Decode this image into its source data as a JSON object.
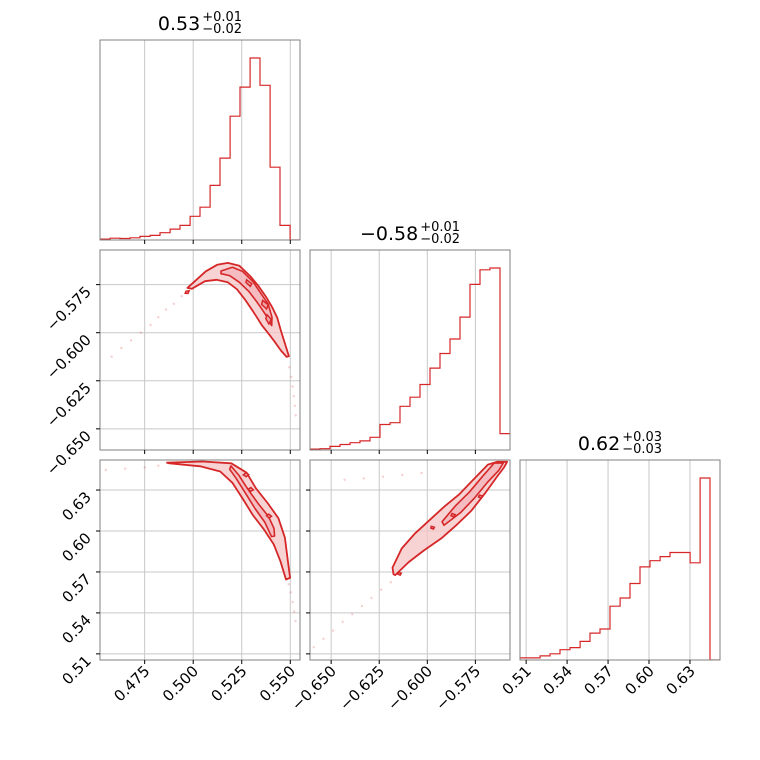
{
  "colors": {
    "hist": "#d62728",
    "contour": "#d62728",
    "fill": "#f4c4c6",
    "grid": "#c8c8c8",
    "frame": "#808080"
  },
  "chart_data": {
    "type": "corner",
    "grid": true,
    "parameters": [
      {
        "median": "0.53",
        "upper": "+0.01",
        "lower": "−0.02",
        "range": [
          0.452,
          0.555
        ],
        "ticks": [
          0.475,
          0.5,
          0.525,
          0.55
        ],
        "tick_labels": [
          "0.475",
          "0.500",
          "0.525",
          "0.550"
        ],
        "hist_edges": [
          0.452,
          0.4572,
          0.4623,
          0.4675,
          0.4726,
          0.4778,
          0.4829,
          0.4881,
          0.4932,
          0.4984,
          0.5035,
          0.5087,
          0.5138,
          0.519,
          0.5241,
          0.5293,
          0.5344,
          0.5396,
          0.5447,
          0.5499,
          0.555
        ],
        "hist_counts": [
          0.5,
          1,
          0.8,
          1.2,
          2,
          2.5,
          4,
          6,
          8,
          13,
          18,
          30,
          45,
          68,
          84,
          100,
          85,
          40,
          8,
          0
        ]
      },
      {
        "median": "−0.58",
        "upper": "+0.01",
        "lower": "−0.02",
        "range": [
          -0.661,
          -0.557
        ],
        "ticks": [
          -0.65,
          -0.625,
          -0.6,
          -0.575
        ],
        "tick_labels": [
          "−0.650",
          "−0.625",
          "−0.600",
          "−0.575"
        ],
        "hist_edges": [
          -0.661,
          -0.6558,
          -0.6506,
          -0.6454,
          -0.6402,
          -0.635,
          -0.6298,
          -0.6246,
          -0.6194,
          -0.6142,
          -0.609,
          -0.6038,
          -0.5986,
          -0.5934,
          -0.5882,
          -0.583,
          -0.5778,
          -0.5726,
          -0.5674,
          -0.5622,
          -0.557
        ],
        "hist_counts": [
          0.5,
          0.7,
          2,
          3,
          4,
          5,
          7,
          14,
          15,
          24,
          29,
          36,
          45,
          53,
          61,
          73,
          91,
          99,
          100,
          9
        ]
      },
      {
        "median": "0.62",
        "upper": "+0.03",
        "lower": "−0.03",
        "range": [
          0.5055,
          0.652
        ],
        "ticks": [
          0.51,
          0.54,
          0.57,
          0.6,
          0.63
        ],
        "tick_labels": [
          "0.51",
          "0.54",
          "0.57",
          "0.60",
          "0.63"
        ],
        "hist_edges": [
          0.5055,
          0.5128,
          0.5202,
          0.5275,
          0.5348,
          0.5421,
          0.5495,
          0.5568,
          0.5641,
          0.5714,
          0.5788,
          0.5861,
          0.5934,
          0.6007,
          0.6081,
          0.6154,
          0.6227,
          0.6301,
          0.6374,
          0.6447,
          0.652
        ],
        "hist_counts": [
          1,
          1,
          2,
          3,
          5,
          6,
          9,
          13,
          15,
          26,
          30,
          37,
          45,
          48,
          50,
          52,
          52,
          47,
          88,
          0
        ]
      }
    ],
    "pairs": [
      {
        "x_param": 0,
        "y_param": 1,
        "outer": [
          [
            0.497,
            -0.5767
          ],
          [
            0.5065,
            -0.5681
          ],
          [
            0.5123,
            -0.5647
          ],
          [
            0.5178,
            -0.5637
          ],
          [
            0.5238,
            -0.5652
          ],
          [
            0.5293,
            -0.5705
          ],
          [
            0.5335,
            -0.5756
          ],
          [
            0.5376,
            -0.5815
          ],
          [
            0.5406,
            -0.5866
          ],
          [
            0.5432,
            -0.592
          ],
          [
            0.5452,
            -0.5991
          ],
          [
            0.5476,
            -0.6067
          ],
          [
            0.5493,
            -0.6122
          ],
          [
            0.5481,
            -0.6126
          ],
          [
            0.5452,
            -0.6093
          ],
          [
            0.5416,
            -0.6042
          ],
          [
            0.5384,
            -0.6
          ],
          [
            0.5355,
            -0.5963
          ],
          [
            0.5326,
            -0.5917
          ],
          [
            0.5296,
            -0.5871
          ],
          [
            0.5266,
            -0.5827
          ],
          [
            0.5225,
            -0.5774
          ],
          [
            0.5178,
            -0.5738
          ],
          [
            0.512,
            -0.5725
          ],
          [
            0.5061,
            -0.5732
          ],
          [
            0.4993,
            -0.5772
          ]
        ],
        "inner": [
          [
            0.5143,
            -0.5679
          ],
          [
            0.5202,
            -0.566
          ],
          [
            0.5253,
            -0.568
          ],
          [
            0.5308,
            -0.5735
          ],
          [
            0.5346,
            -0.5792
          ],
          [
            0.5386,
            -0.5852
          ],
          [
            0.5406,
            -0.592
          ],
          [
            0.5404,
            -0.5963
          ],
          [
            0.5384,
            -0.5924
          ],
          [
            0.5355,
            -0.5879
          ],
          [
            0.5323,
            -0.5833
          ],
          [
            0.5286,
            -0.5785
          ],
          [
            0.5238,
            -0.5738
          ],
          [
            0.5188,
            -0.5703
          ],
          [
            0.5143,
            -0.5693
          ]
        ],
        "core": [
          [
            [
              0.5275,
              -0.5725
            ],
            [
              0.5302,
              -0.5745
            ],
            [
              0.5294,
              -0.5759
            ],
            [
              0.5272,
              -0.5739
            ]
          ],
          [
            [
              0.5358,
              -0.5832
            ],
            [
              0.5386,
              -0.5855
            ],
            [
              0.5378,
              -0.5877
            ],
            [
              0.5352,
              -0.5853
            ]
          ],
          [
            [
              0.538,
              -0.5907
            ],
            [
              0.5402,
              -0.5931
            ],
            [
              0.539,
              -0.5955
            ],
            [
              0.5374,
              -0.5927
            ]
          ],
          [
            [
              0.4963,
              -0.5784
            ],
            [
              0.4979,
              -0.5782
            ],
            [
              0.4973,
              -0.5796
            ],
            [
              0.4959,
              -0.5795
            ]
          ]
        ],
        "points": [
          [
            0.458,
            -0.6125
          ],
          [
            0.463,
            -0.608
          ],
          [
            0.468,
            -0.604
          ],
          [
            0.473,
            -0.6
          ],
          [
            0.478,
            -0.596
          ],
          [
            0.482,
            -0.592
          ],
          [
            0.486,
            -0.588
          ],
          [
            0.49,
            -0.585
          ],
          [
            0.494,
            -0.581
          ],
          [
            0.5495,
            -0.618
          ],
          [
            0.5505,
            -0.623
          ],
          [
            0.5512,
            -0.628
          ],
          [
            0.5518,
            -0.633
          ],
          [
            0.5523,
            -0.638
          ],
          [
            0.5528,
            -0.643
          ]
        ]
      },
      {
        "x_param": 0,
        "y_param": 2,
        "outer": [
          [
            0.4865,
            0.65
          ],
          [
            0.5048,
            0.6509
          ],
          [
            0.5196,
            0.6496
          ],
          [
            0.5275,
            0.6427
          ],
          [
            0.5323,
            0.6313
          ],
          [
            0.5383,
            0.6205
          ],
          [
            0.5439,
            0.6094
          ],
          [
            0.5472,
            0.5951
          ],
          [
            0.5488,
            0.5773
          ],
          [
            0.5499,
            0.5657
          ],
          [
            0.5478,
            0.5645
          ],
          [
            0.5449,
            0.5779
          ],
          [
            0.5415,
            0.5901
          ],
          [
            0.5367,
            0.6006
          ],
          [
            0.5307,
            0.6117
          ],
          [
            0.5254,
            0.6239
          ],
          [
            0.5202,
            0.6353
          ],
          [
            0.5139,
            0.6436
          ],
          [
            0.5036,
            0.6474
          ],
          [
            0.4879,
            0.6495
          ]
        ],
        "inner": [
          [
            0.5194,
            0.6477
          ],
          [
            0.5236,
            0.6407
          ],
          [
            0.528,
            0.6309
          ],
          [
            0.5335,
            0.62
          ],
          [
            0.5388,
            0.6106
          ],
          [
            0.5416,
            0.6019
          ],
          [
            0.5419,
            0.5963
          ],
          [
            0.5403,
            0.5959
          ],
          [
            0.5369,
            0.6063
          ],
          [
            0.5318,
            0.6165
          ],
          [
            0.5267,
            0.6283
          ],
          [
            0.5221,
            0.6386
          ],
          [
            0.5188,
            0.6452
          ]
        ],
        "core": [
          [
            [
              0.5283,
              0.6306
            ],
            [
              0.5295,
              0.629
            ],
            [
              0.531,
              0.6302
            ],
            [
              0.5297,
              0.6318
            ]
          ],
          [
            [
              0.5378,
              0.6111
            ],
            [
              0.5391,
              0.6095
            ],
            [
              0.5403,
              0.6108
            ],
            [
              0.5389,
              0.6124
            ]
          ],
          [
            [
              0.5258,
              0.6411
            ],
            [
              0.5273,
              0.6398
            ],
            [
              0.5286,
              0.6412
            ],
            [
              0.5272,
              0.6426
            ]
          ]
        ],
        "points": [
          [
            0.455,
            0.6447
          ],
          [
            0.465,
            0.6456
          ],
          [
            0.475,
            0.6466
          ],
          [
            0.482,
            0.6478
          ],
          [
            0.5492,
            0.561
          ],
          [
            0.5502,
            0.555
          ],
          [
            0.5512,
            0.548
          ],
          [
            0.552,
            0.541
          ],
          [
            0.5527,
            0.534
          ]
        ]
      },
      {
        "x_param": 1,
        "y_param": 2,
        "outer": [
          [
            -0.6167,
            0.5677
          ],
          [
            -0.6097,
            0.5772
          ],
          [
            -0.6017,
            0.5858
          ],
          [
            -0.5927,
            0.5946
          ],
          [
            -0.5842,
            0.6052
          ],
          [
            -0.5772,
            0.6147
          ],
          [
            -0.5701,
            0.6274
          ],
          [
            -0.5635,
            0.6403
          ],
          [
            -0.5601,
            0.6465
          ],
          [
            -0.5585,
            0.6507
          ],
          [
            -0.5636,
            0.6507
          ],
          [
            -0.5685,
            0.6486
          ],
          [
            -0.5762,
            0.6374
          ],
          [
            -0.5836,
            0.6266
          ],
          [
            -0.5912,
            0.6178
          ],
          [
            -0.5986,
            0.6083
          ],
          [
            -0.6064,
            0.5982
          ],
          [
            -0.6133,
            0.5872
          ],
          [
            -0.6181,
            0.5732
          ],
          [
            -0.6176,
            0.5683
          ]
        ],
        "inner": [
          [
            -0.5913,
            0.6042
          ],
          [
            -0.5828,
            0.6133
          ],
          [
            -0.5757,
            0.6237
          ],
          [
            -0.5689,
            0.6354
          ],
          [
            -0.5629,
            0.6444
          ],
          [
            -0.5605,
            0.6498
          ],
          [
            -0.5652,
            0.6497
          ],
          [
            -0.5712,
            0.6401
          ],
          [
            -0.578,
            0.6287
          ],
          [
            -0.5855,
            0.6182
          ],
          [
            -0.5923,
            0.6068
          ]
        ],
        "core": [
          [
            [
              -0.5982,
              0.6021
            ],
            [
              -0.5968,
              0.6014
            ],
            [
              -0.5963,
              0.6028
            ],
            [
              -0.5979,
              0.6034
            ]
          ],
          [
            [
              -0.5877,
              0.6112
            ],
            [
              -0.5863,
              0.6104
            ],
            [
              -0.5855,
              0.6119
            ],
            [
              -0.5871,
              0.6128
            ]
          ],
          [
            [
              -0.5734,
              0.6249
            ],
            [
              -0.572,
              0.6241
            ],
            [
              -0.5712,
              0.6256
            ],
            [
              -0.5729,
              0.6263
            ]
          ],
          [
            [
              -0.6154,
              0.5684
            ],
            [
              -0.6141,
              0.5676
            ],
            [
              -0.6135,
              0.5691
            ],
            [
              -0.6148,
              0.5698
            ]
          ]
        ],
        "points": [
          [
            -0.659,
            0.5148
          ],
          [
            -0.654,
            0.521
          ],
          [
            -0.649,
            0.527
          ],
          [
            -0.644,
            0.5335
          ],
          [
            -0.639,
            0.539
          ],
          [
            -0.634,
            0.545
          ],
          [
            -0.629,
            0.551
          ],
          [
            -0.624,
            0.557
          ],
          [
            -0.619,
            0.5625
          ],
          [
            -0.643,
            0.6375
          ],
          [
            -0.633,
            0.6385
          ],
          [
            -0.623,
            0.6397
          ],
          [
            -0.613,
            0.641
          ],
          [
            -0.603,
            0.6425
          ]
        ]
      }
    ]
  }
}
